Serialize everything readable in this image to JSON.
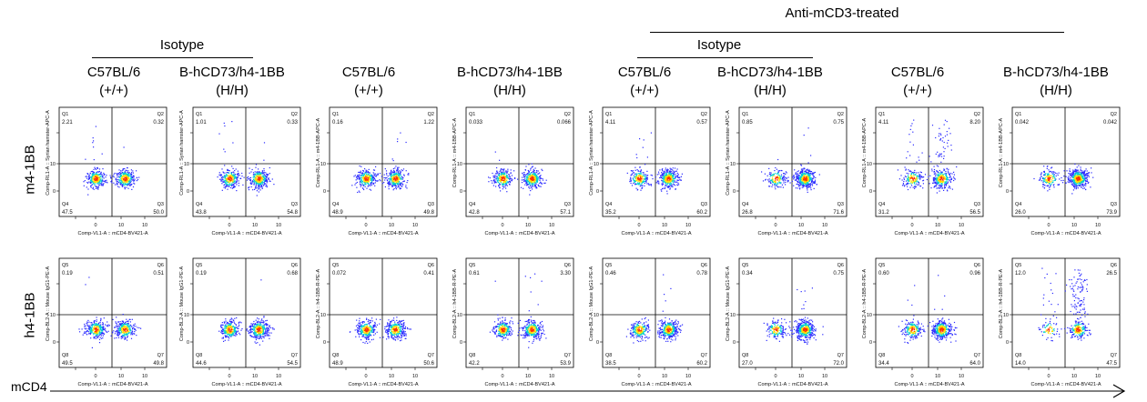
{
  "header": {
    "treated_label": "Anti-mCD3-treated",
    "isotype_left": "Isotype",
    "isotype_right": "Isotype"
  },
  "columns": [
    {
      "strain": "C57BL/6",
      "genotype": "(+/+)"
    },
    {
      "strain": "B-hCD73/h4-1BB",
      "genotype": "(H/H)"
    },
    {
      "strain": "C57BL/6",
      "genotype": "(+/+)"
    },
    {
      "strain": "B-hCD73/h4-1BB",
      "genotype": "(H/H)"
    },
    {
      "strain": "C57BL/6",
      "genotype": "(+/+)"
    },
    {
      "strain": "B-hCD73/h4-1BB",
      "genotype": "(H/H)"
    },
    {
      "strain": "C57BL/6",
      "genotype": "(+/+)"
    },
    {
      "strain": "B-hCD73/h4-1BB",
      "genotype": "(H/H)"
    }
  ],
  "row_labels": [
    "m4-1BB",
    "h4-1BB"
  ],
  "x_axis_label": "mCD4",
  "colors": {
    "dot_low": "#2a2aff",
    "dot_mid": "#00d0d0",
    "dot_high": "#ffe000",
    "dot_peak": "#ff3000"
  },
  "chart_data": [
    {
      "type": "scatter",
      "row": "m4-1BB",
      "column": 1,
      "xlabel": "Comp-VL1-A :: mCD4-BV421-A",
      "ylabel": "Comp-RL1-A :: Syrian hamster-APC-A",
      "quadrants": {
        "UL": {
          "name": "Q1",
          "value": "2.21"
        },
        "UR": {
          "name": "Q2",
          "value": "0.32"
        },
        "LR": {
          "name": "Q3",
          "value": "50.0"
        },
        "LL": {
          "name": "Q4",
          "value": "47.5"
        }
      }
    },
    {
      "type": "scatter",
      "row": "m4-1BB",
      "column": 2,
      "xlabel": "Comp-VL1-A :: mCD4-BV421-A",
      "ylabel": "Comp-RL1-A :: Syrian hamster-APC-A",
      "quadrants": {
        "UL": {
          "name": "Q1",
          "value": "1.01"
        },
        "UR": {
          "name": "Q2",
          "value": "0.33"
        },
        "LR": {
          "name": "Q3",
          "value": "54.8"
        },
        "LL": {
          "name": "Q4",
          "value": "43.8"
        }
      }
    },
    {
      "type": "scatter",
      "row": "m4-1BB",
      "column": 3,
      "xlabel": "Comp-VL1-A :: mCD4-BV421-A",
      "ylabel": "Comp-RL1-A :: m4-1BB-APC-A",
      "quadrants": {
        "UL": {
          "name": "Q1",
          "value": "0.16"
        },
        "UR": {
          "name": "Q2",
          "value": "1.22"
        },
        "LR": {
          "name": "Q3",
          "value": "49.8"
        },
        "LL": {
          "name": "Q4",
          "value": "48.9"
        }
      }
    },
    {
      "type": "scatter",
      "row": "m4-1BB",
      "column": 4,
      "xlabel": "Comp-VL1-A :: mCD4-BV421-A",
      "ylabel": "Comp-RL1-A :: m4-1BB-APC-A",
      "quadrants": {
        "UL": {
          "name": "Q1",
          "value": "0.033"
        },
        "UR": {
          "name": "Q2",
          "value": "0.066"
        },
        "LR": {
          "name": "Q3",
          "value": "57.1"
        },
        "LL": {
          "name": "Q4",
          "value": "42.8"
        }
      }
    },
    {
      "type": "scatter",
      "row": "m4-1BB",
      "column": 5,
      "xlabel": "Comp-VL1-A :: mCD4-BV421-A",
      "ylabel": "Comp-RL1-A :: Syrian hamster-APC-A",
      "quadrants": {
        "UL": {
          "name": "Q1",
          "value": "4.11"
        },
        "UR": {
          "name": "Q2",
          "value": "0.57"
        },
        "LR": {
          "name": "Q3",
          "value": "60.2"
        },
        "LL": {
          "name": "Q4",
          "value": "35.2"
        }
      }
    },
    {
      "type": "scatter",
      "row": "m4-1BB",
      "column": 6,
      "xlabel": "Comp-VL1-A :: mCD4-BV421-A",
      "ylabel": "Comp-RL1-A :: Syrian hamster-APC-A",
      "quadrants": {
        "UL": {
          "name": "Q1",
          "value": "0.85"
        },
        "UR": {
          "name": "Q2",
          "value": "0.75"
        },
        "LR": {
          "name": "Q3",
          "value": "71.6"
        },
        "LL": {
          "name": "Q4",
          "value": "26.8"
        }
      }
    },
    {
      "type": "scatter",
      "row": "m4-1BB",
      "column": 7,
      "xlabel": "Comp-VL1-A :: mCD4-BV421-A",
      "ylabel": "Comp-RL1-A :: m4-1BB-APC-A",
      "quadrants": {
        "UL": {
          "name": "Q1",
          "value": "4.11"
        },
        "UR": {
          "name": "Q2",
          "value": "8.20"
        },
        "LR": {
          "name": "Q3",
          "value": "56.5"
        },
        "LL": {
          "name": "Q4",
          "value": "31.2"
        }
      }
    },
    {
      "type": "scatter",
      "row": "m4-1BB",
      "column": 8,
      "xlabel": "Comp-VL1-A :: mCD4-BV421-A",
      "ylabel": "Comp-RL1-A :: m4-1BB-APC-A",
      "quadrants": {
        "UL": {
          "name": "Q1",
          "value": "0.042"
        },
        "UR": {
          "name": "Q2",
          "value": "0.042"
        },
        "LR": {
          "name": "Q3",
          "value": "73.9"
        },
        "LL": {
          "name": "Q4",
          "value": "26.0"
        }
      }
    },
    {
      "type": "scatter",
      "row": "h4-1BB",
      "column": 1,
      "xlabel": "Comp-VL1-A :: mCD4-BV421-A",
      "ylabel": "Comp-BL2-A :: Mouse IgG1-PE-A",
      "quadrants": {
        "UL": {
          "name": "Q5",
          "value": "0.19"
        },
        "UR": {
          "name": "Q6",
          "value": "0.51"
        },
        "LR": {
          "name": "Q7",
          "value": "49.8"
        },
        "LL": {
          "name": "Q8",
          "value": "49.5"
        }
      }
    },
    {
      "type": "scatter",
      "row": "h4-1BB",
      "column": 2,
      "xlabel": "Comp-VL1-A :: mCD4-BV421-A",
      "ylabel": "Comp-BL2-A :: Mouse IgG1-PE-A",
      "quadrants": {
        "UL": {
          "name": "Q5",
          "value": "0.19"
        },
        "UR": {
          "name": "Q6",
          "value": "0.68"
        },
        "LR": {
          "name": "Q7",
          "value": "54.5"
        },
        "LL": {
          "name": "Q8",
          "value": "44.6"
        }
      }
    },
    {
      "type": "scatter",
      "row": "h4-1BB",
      "column": 3,
      "xlabel": "Comp-VL1-A :: mCD4-BV421-A",
      "ylabel": "Comp-BL2-A :: h4-1BB-R-PE-A",
      "quadrants": {
        "UL": {
          "name": "Q5",
          "value": "0.072"
        },
        "UR": {
          "name": "Q6",
          "value": "0.41"
        },
        "LR": {
          "name": "Q7",
          "value": "50.6"
        },
        "LL": {
          "name": "Q8",
          "value": "48.9"
        }
      }
    },
    {
      "type": "scatter",
      "row": "h4-1BB",
      "column": 4,
      "xlabel": "Comp-VL1-A :: mCD4-BV421-A",
      "ylabel": "Comp-BL2-A :: h4-1BB-R-PE-A",
      "quadrants": {
        "UL": {
          "name": "Q5",
          "value": "0.61"
        },
        "UR": {
          "name": "Q6",
          "value": "3.30"
        },
        "LR": {
          "name": "Q7",
          "value": "53.9"
        },
        "LL": {
          "name": "Q8",
          "value": "42.2"
        }
      }
    },
    {
      "type": "scatter",
      "row": "h4-1BB",
      "column": 5,
      "xlabel": "Comp-VL1-A :: mCD4-BV421-A",
      "ylabel": "Comp-BL2-A :: Mouse IgG1-PE-A",
      "quadrants": {
        "UL": {
          "name": "Q5",
          "value": "0.46"
        },
        "UR": {
          "name": "Q6",
          "value": "0.78"
        },
        "LR": {
          "name": "Q7",
          "value": "60.2"
        },
        "LL": {
          "name": "Q8",
          "value": "38.5"
        }
      }
    },
    {
      "type": "scatter",
      "row": "h4-1BB",
      "column": 6,
      "xlabel": "Comp-VL1-A :: mCD4-BV421-A",
      "ylabel": "Comp-BL2-A :: Mouse IgG1-PE-A",
      "quadrants": {
        "UL": {
          "name": "Q5",
          "value": "0.34"
        },
        "UR": {
          "name": "Q6",
          "value": "0.75"
        },
        "LR": {
          "name": "Q7",
          "value": "72.0"
        },
        "LL": {
          "name": "Q8",
          "value": "27.0"
        }
      }
    },
    {
      "type": "scatter",
      "row": "h4-1BB",
      "column": 7,
      "xlabel": "Comp-VL1-A :: mCD4-BV421-A",
      "ylabel": "Comp-BL2-A :: h4-1BB-R-PE-A",
      "quadrants": {
        "UL": {
          "name": "Q5",
          "value": "0.60"
        },
        "UR": {
          "name": "Q6",
          "value": "0.96"
        },
        "LR": {
          "name": "Q7",
          "value": "64.0"
        },
        "LL": {
          "name": "Q8",
          "value": "34.4"
        }
      }
    },
    {
      "type": "scatter",
      "row": "h4-1BB",
      "column": 8,
      "xlabel": "Comp-VL1-A :: mCD4-BV421-A",
      "ylabel": "Comp-BL2-A :: h4-1BB-R-PE-A",
      "quadrants": {
        "UL": {
          "name": "Q5",
          "value": "12.0"
        },
        "UR": {
          "name": "Q6",
          "value": "26.5"
        },
        "LR": {
          "name": "Q7",
          "value": "47.5"
        },
        "LL": {
          "name": "Q8",
          "value": "14.0"
        }
      }
    }
  ]
}
